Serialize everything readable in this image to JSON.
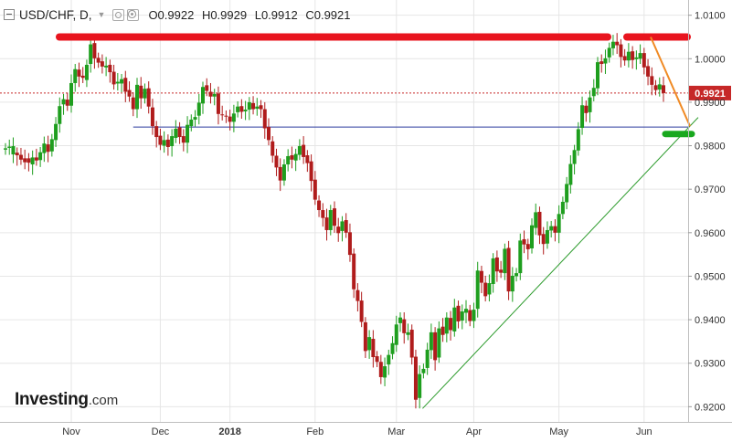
{
  "header": {
    "symbol": "USD/CHF, D,",
    "open": "O0.9922",
    "high": "H0.9929",
    "low": "L0.9912",
    "close": "C0.9921"
  },
  "logo": {
    "brand": "Investing",
    "suffix": ".com"
  },
  "chart_data": {
    "type": "candlestick",
    "title": "USD/CHF, D",
    "timeframe": "D",
    "ylim": [
      0.9165,
      1.0135
    ],
    "y_ticks": [
      "1.0100",
      "1.0000",
      "0.9900",
      "0.9800",
      "0.9700",
      "0.9600",
      "0.9500",
      "0.9400",
      "0.9300",
      "0.9200"
    ],
    "x_ticks": [
      "Nov",
      "Dec",
      "2018",
      "Feb",
      "Mar",
      "Apr",
      "May",
      "Jun"
    ],
    "last_price": "0.9921",
    "grid": true,
    "colors": {
      "up": "#1e9e1e",
      "down": "#b01c1c",
      "resistance": "#e8141e",
      "support_marker": "#19a81e",
      "trendline": "#2e9c2e",
      "horizontal_line": "#2b3a9e",
      "projection": "#f08a24",
      "price_line": "#c62828"
    },
    "annotations": [
      {
        "type": "resistance-zone",
        "level": 1.005
      },
      {
        "type": "horizontal-line",
        "level": 0.9843
      },
      {
        "type": "support-zone",
        "level": 0.9827
      },
      {
        "type": "uptrend-line",
        "from": 0.92,
        "to": 0.9865
      },
      {
        "type": "projected-decline",
        "from": 1.005,
        "to": 0.9845
      }
    ],
    "candles": [
      [
        0.9791,
        0.9794
      ],
      [
        0.9795,
        0.9798
      ],
      [
        0.978,
        0.9799
      ],
      [
        0.9784,
        0.9778
      ],
      [
        0.9779,
        0.9768
      ],
      [
        0.9771,
        0.9762
      ],
      [
        0.9771,
        0.9761
      ],
      [
        0.9757,
        0.9773
      ],
      [
        0.9773,
        0.9766
      ],
      [
        0.9767,
        0.9785
      ],
      [
        0.9783,
        0.9805
      ],
      [
        0.9803,
        0.9786
      ],
      [
        0.9787,
        0.9815
      ],
      [
        0.9813,
        0.985
      ],
      [
        0.985,
        0.9891
      ],
      [
        0.9895,
        0.9907
      ],
      [
        0.9906,
        0.9892
      ],
      [
        0.9892,
        0.9944
      ],
      [
        0.9944,
        0.9976
      ],
      [
        0.9975,
        0.9959
      ],
      [
        0.9961,
        0.9956
      ],
      [
        0.9951,
        0.9986
      ],
      [
        0.9988,
        1.0033
      ],
      [
        1.0036,
        1.0001
      ],
      [
        1.0002,
        0.9991
      ],
      [
        0.9994,
        0.9982
      ],
      [
        0.998,
        0.9984
      ],
      [
        0.9986,
        0.9969
      ],
      [
        0.997,
        0.9941
      ],
      [
        0.9943,
        0.9947
      ],
      [
        0.9943,
        0.9953
      ],
      [
        0.9956,
        0.9924
      ],
      [
        0.9928,
        0.9913
      ],
      [
        0.9911,
        0.9884
      ],
      [
        0.9884,
        0.994
      ],
      [
        0.9938,
        0.9909
      ],
      [
        0.9909,
        0.9931
      ],
      [
        0.9932,
        0.989
      ],
      [
        0.9888,
        0.9845
      ],
      [
        0.9845,
        0.982
      ],
      [
        0.9823,
        0.9802
      ],
      [
        0.98,
        0.9813
      ],
      [
        0.9814,
        0.9797
      ],
      [
        0.9799,
        0.9822
      ],
      [
        0.9818,
        0.9839
      ],
      [
        0.9842,
        0.982
      ],
      [
        0.9822,
        0.9807
      ],
      [
        0.9807,
        0.9848
      ],
      [
        0.9845,
        0.986
      ],
      [
        0.986,
        0.9866
      ],
      [
        0.9869,
        0.9899
      ],
      [
        0.9897,
        0.9935
      ],
      [
        0.9939,
        0.9926
      ],
      [
        0.9924,
        0.9913
      ],
      [
        0.9913,
        0.9919
      ],
      [
        0.992,
        0.9873
      ],
      [
        0.9872,
        0.987
      ],
      [
        0.9869,
        0.9868
      ],
      [
        0.9867,
        0.9855
      ],
      [
        0.9855,
        0.9874
      ],
      [
        0.9877,
        0.989
      ],
      [
        0.9891,
        0.9878
      ],
      [
        0.9879,
        0.9883
      ],
      [
        0.9883,
        0.99
      ],
      [
        0.9898,
        0.9884
      ],
      [
        0.9885,
        0.989
      ],
      [
        0.9893,
        0.9884
      ],
      [
        0.9884,
        0.984
      ],
      [
        0.9843,
        0.9813
      ],
      [
        0.981,
        0.9777
      ],
      [
        0.9777,
        0.975
      ],
      [
        0.9751,
        0.972
      ],
      [
        0.972,
        0.9757
      ],
      [
        0.9757,
        0.9776
      ],
      [
        0.9778,
        0.9768
      ],
      [
        0.9766,
        0.9781
      ],
      [
        0.9779,
        0.9799
      ],
      [
        0.9802,
        0.9774
      ],
      [
        0.9778,
        0.976
      ],
      [
        0.9764,
        0.9719
      ],
      [
        0.9722,
        0.9676
      ],
      [
        0.9674,
        0.9652
      ],
      [
        0.9652,
        0.9634
      ],
      [
        0.9635,
        0.9606
      ],
      [
        0.9606,
        0.9652
      ],
      [
        0.9656,
        0.9616
      ],
      [
        0.9614,
        0.9599
      ],
      [
        0.9604,
        0.9626
      ],
      [
        0.9629,
        0.96
      ],
      [
        0.9601,
        0.9549
      ],
      [
        0.9552,
        0.947
      ],
      [
        0.9468,
        0.9443
      ],
      [
        0.9444,
        0.9395
      ],
      [
        0.9394,
        0.9328
      ],
      [
        0.933,
        0.936
      ],
      [
        0.9356,
        0.9314
      ],
      [
        0.9316,
        0.9303
      ],
      [
        0.9303,
        0.9268
      ],
      [
        0.9267,
        0.9293
      ],
      [
        0.9297,
        0.9319
      ],
      [
        0.9321,
        0.9346
      ],
      [
        0.9342,
        0.9389
      ],
      [
        0.9392,
        0.9405
      ],
      [
        0.9401,
        0.9369
      ],
      [
        0.9365,
        0.9371
      ],
      [
        0.9377,
        0.9313
      ],
      [
        0.9315,
        0.9216
      ],
      [
        0.922,
        0.9275
      ],
      [
        0.9277,
        0.9287
      ],
      [
        0.9289,
        0.9331
      ],
      [
        0.933,
        0.9371
      ],
      [
        0.9371,
        0.9307
      ],
      [
        0.9313,
        0.938
      ],
      [
        0.9384,
        0.9365
      ],
      [
        0.9368,
        0.9405
      ],
      [
        0.9404,
        0.9376
      ],
      [
        0.9373,
        0.9428
      ],
      [
        0.9432,
        0.9396
      ],
      [
        0.9398,
        0.9419
      ],
      [
        0.9416,
        0.9425
      ],
      [
        0.9422,
        0.9397
      ],
      [
        0.9397,
        0.9423
      ],
      [
        0.9425,
        0.9513
      ],
      [
        0.9512,
        0.9485
      ],
      [
        0.9485,
        0.9454
      ],
      [
        0.9458,
        0.9484
      ],
      [
        0.9482,
        0.9541
      ],
      [
        0.9543,
        0.9511
      ],
      [
        0.9515,
        0.9508
      ],
      [
        0.9507,
        0.9563
      ],
      [
        0.9565,
        0.9465
      ],
      [
        0.9465,
        0.9501
      ],
      [
        0.95,
        0.9507
      ],
      [
        0.9507,
        0.9582
      ],
      [
        0.9585,
        0.9573
      ],
      [
        0.9574,
        0.9562
      ],
      [
        0.9564,
        0.9617
      ],
      [
        0.9611,
        0.9647
      ],
      [
        0.9648,
        0.9594
      ],
      [
        0.9597,
        0.9574
      ],
      [
        0.9575,
        0.9606
      ],
      [
        0.9605,
        0.9615
      ],
      [
        0.9615,
        0.96
      ],
      [
        0.96,
        0.9643
      ],
      [
        0.9643,
        0.9671
      ],
      [
        0.967,
        0.9712
      ],
      [
        0.971,
        0.9758
      ],
      [
        0.9758,
        0.979
      ],
      [
        0.9789,
        0.9838
      ],
      [
        0.9841,
        0.9893
      ],
      [
        0.9892,
        0.9875
      ],
      [
        0.9877,
        0.9911
      ],
      [
        0.9914,
        0.9933
      ],
      [
        0.9932,
        0.9992
      ],
      [
        0.9994,
        0.9988
      ],
      [
        0.9989,
        1.0001
      ],
      [
        1.0003,
        1.0025
      ],
      [
        1.0024,
        1.0039
      ],
      [
        1.0039,
        1.0031
      ],
      [
        1.0033,
        1.0004
      ],
      [
        1.0006,
        0.9996
      ],
      [
        0.9996,
        1.0016
      ],
      [
        1.0017,
        0.9997
      ],
      [
        0.9999,
        1.0003
      ],
      [
        1.0,
        1.0013
      ],
      [
        1.0013,
        0.998
      ],
      [
        0.9983,
        0.9959
      ],
      [
        0.996,
        0.994
      ],
      [
        0.9939,
        0.9928
      ],
      [
        0.9929,
        0.9941
      ],
      [
        0.9939,
        0.9921
      ]
    ]
  }
}
